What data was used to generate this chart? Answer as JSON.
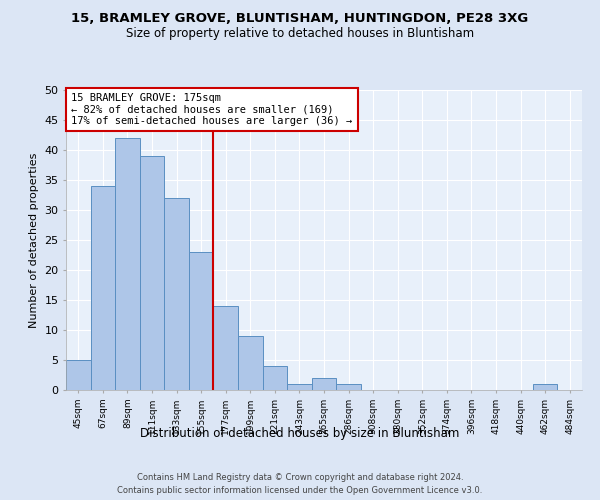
{
  "title1": "15, BRAMLEY GROVE, BLUNTISHAM, HUNTINGDON, PE28 3XG",
  "title2": "Size of property relative to detached houses in Bluntisham",
  "xlabel": "Distribution of detached houses by size in Bluntisham",
  "ylabel": "Number of detached properties",
  "footer1": "Contains HM Land Registry data © Crown copyright and database right 2024.",
  "footer2": "Contains public sector information licensed under the Open Government Licence v3.0.",
  "bin_labels": [
    "45sqm",
    "67sqm",
    "89sqm",
    "111sqm",
    "133sqm",
    "155sqm",
    "177sqm",
    "199sqm",
    "221sqm",
    "243sqm",
    "265sqm",
    "286sqm",
    "308sqm",
    "330sqm",
    "352sqm",
    "374sqm",
    "396sqm",
    "418sqm",
    "440sqm",
    "462sqm",
    "484sqm"
  ],
  "bar_values": [
    5,
    34,
    42,
    39,
    32,
    23,
    14,
    9,
    4,
    1,
    2,
    1,
    0,
    0,
    0,
    0,
    0,
    0,
    0,
    1,
    0
  ],
  "bar_color": "#aec6e8",
  "bar_edge_color": "#5a8fc2",
  "vline_color": "#cc0000",
  "ylim": [
    0,
    50
  ],
  "yticks": [
    0,
    5,
    10,
    15,
    20,
    25,
    30,
    35,
    40,
    45,
    50
  ],
  "annotation_text": "15 BRAMLEY GROVE: 175sqm\n← 82% of detached houses are smaller (169)\n17% of semi-detached houses are larger (36) →",
  "annotation_box_color": "#ffffff",
  "annotation_box_edge": "#cc0000",
  "bg_color": "#dce6f5",
  "plot_bg_color": "#e8f0fa"
}
